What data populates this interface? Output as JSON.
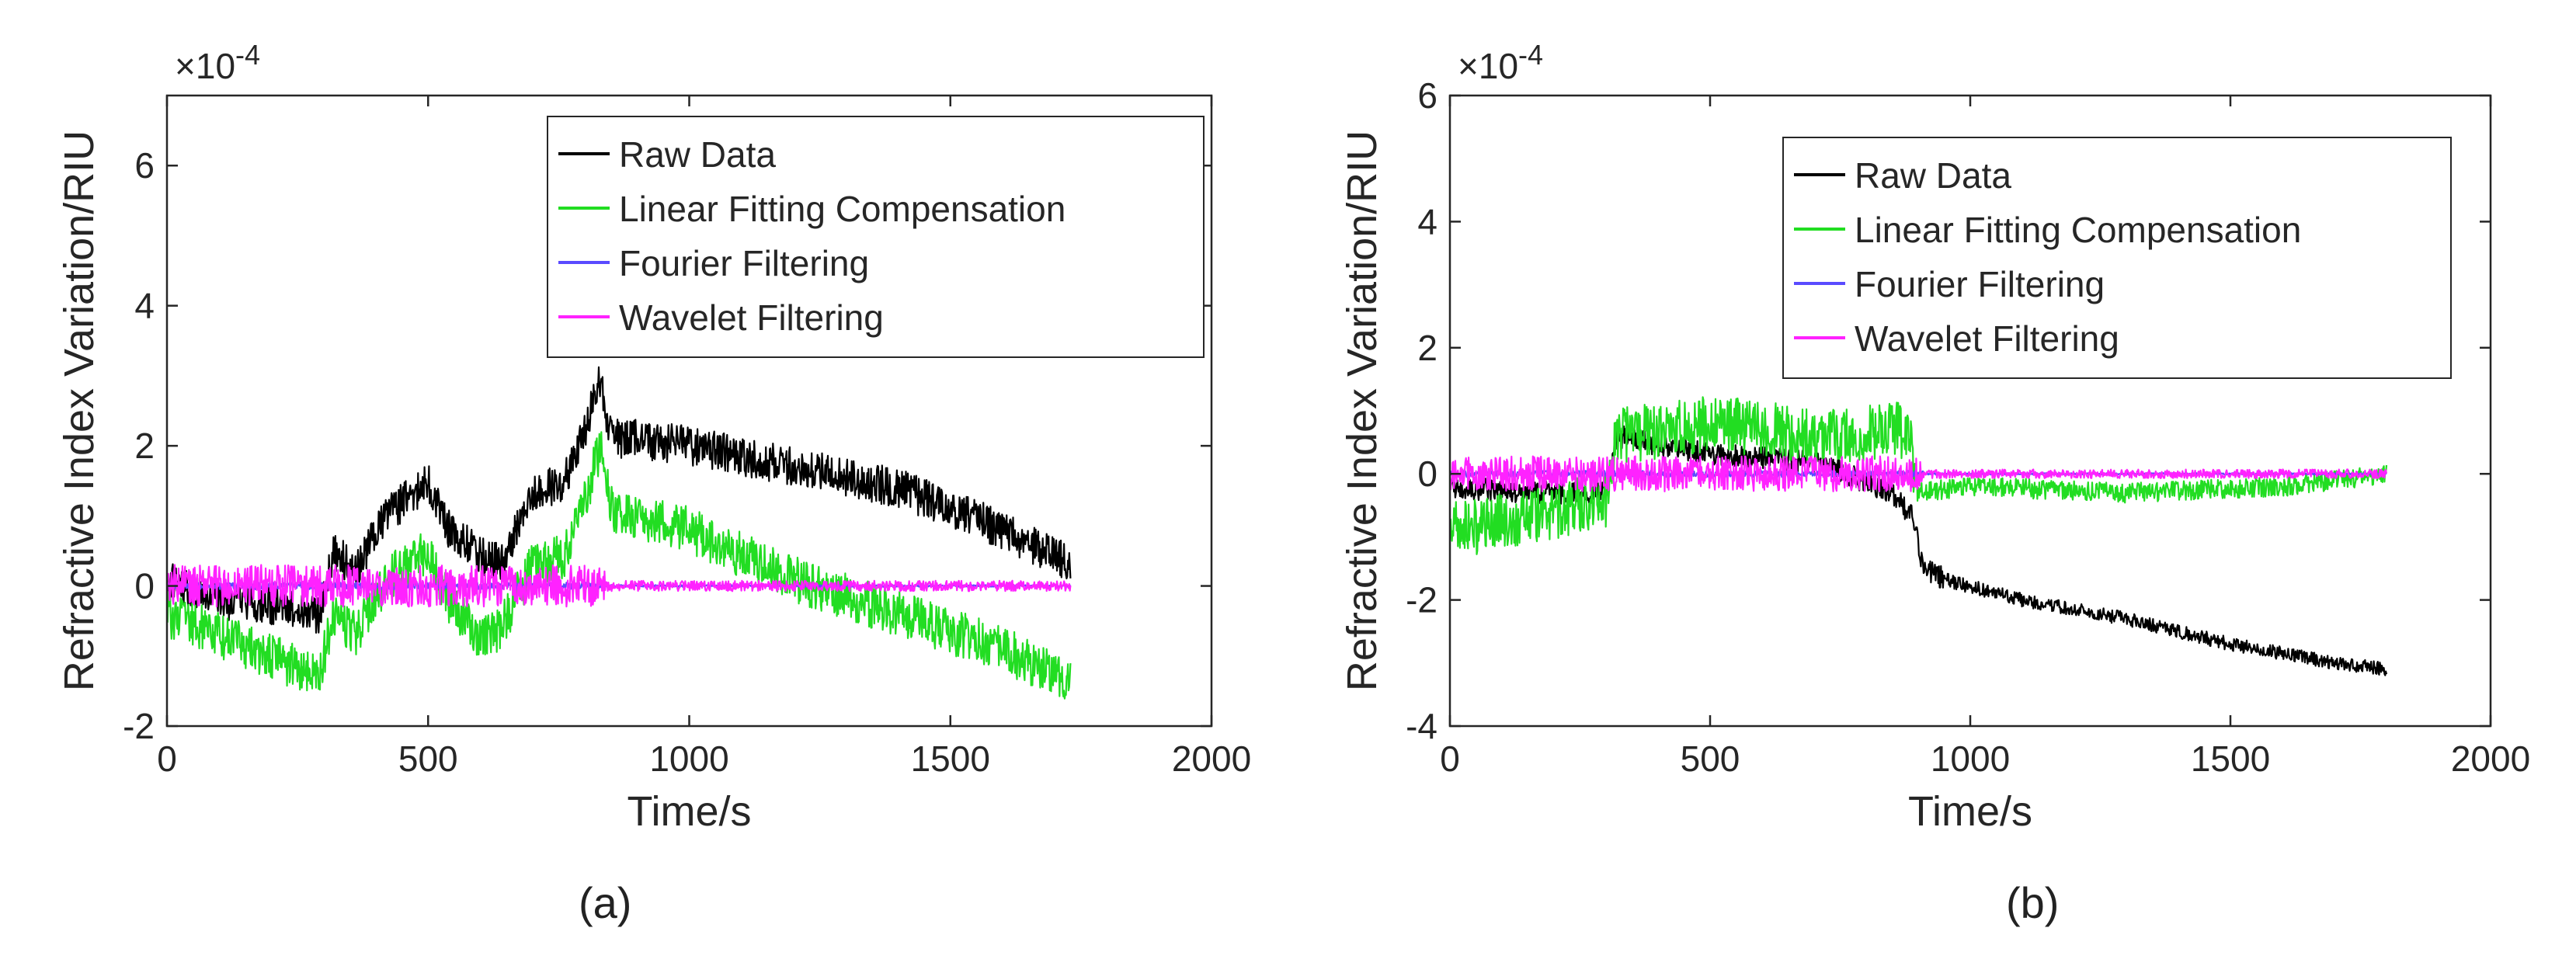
{
  "chart_data": [
    {
      "type": "line",
      "panel_label": "(a)",
      "xlabel": "Time/s",
      "ylabel": "Refractive Index Variation/RIU",
      "y_exponent": "×10",
      "y_exponent_power": "-4",
      "xlim": [
        0,
        2000
      ],
      "ylim": [
        -2,
        7
      ],
      "xticks": [
        "0",
        "500",
        "1000",
        "1500",
        "2000"
      ],
      "xtick_values": [
        0,
        500,
        1000,
        1500,
        2000
      ],
      "yticks": [
        "-2",
        "0",
        "2",
        "4",
        "6"
      ],
      "ytick_values": [
        -2,
        0,
        2,
        4,
        6
      ],
      "grid": false,
      "legend_position": "top-right",
      "series": [
        {
          "name": "Raw Data",
          "color": "#000000",
          "noise": 0.28,
          "x": [
            0,
            100,
            200,
            290,
            320,
            360,
            420,
            500,
            540,
            590,
            640,
            700,
            760,
            800,
            830,
            850,
            900,
            1000,
            1200,
            1400,
            1600,
            1730
          ],
          "y": [
            0.1,
            -0.2,
            -0.3,
            -0.4,
            0.5,
            0.2,
            1.0,
            1.5,
            0.8,
            0.5,
            0.3,
            1.3,
            1.5,
            2.2,
            3.0,
            2.1,
            2.1,
            2.0,
            1.7,
            1.4,
            0.8,
            0.3
          ]
        },
        {
          "name": "Linear Fitting Compensation",
          "color": "#22dd22",
          "noise": 0.33,
          "x": [
            0,
            100,
            200,
            290,
            320,
            360,
            420,
            500,
            540,
            590,
            640,
            700,
            760,
            800,
            830,
            850,
            900,
            1000,
            1200,
            1400,
            1600,
            1730
          ],
          "y": [
            -0.4,
            -0.7,
            -1.0,
            -1.3,
            -0.4,
            -0.7,
            0.1,
            0.5,
            -0.2,
            -0.7,
            -0.6,
            0.3,
            0.4,
            1.2,
            2.0,
            1.1,
            1.0,
            0.8,
            0.1,
            -0.4,
            -0.9,
            -1.4
          ]
        },
        {
          "name": "Fourier Filtering",
          "color": "#5a4bff",
          "noise": 0.05,
          "x": [
            0,
            400,
            830,
            850,
            1300,
            1730
          ],
          "y": [
            0.0,
            0.0,
            0.0,
            0.0,
            0.0,
            0.0
          ]
        },
        {
          "name": "Wavelet Filtering",
          "color": "#ff22ff",
          "noise": 0.3,
          "x": [
            0,
            400,
            830,
            850,
            1300,
            1730
          ],
          "y": [
            0.0,
            0.0,
            0.0,
            0.0,
            0.0,
            0.0
          ]
        }
      ]
    },
    {
      "type": "line",
      "panel_label": "(b)",
      "xlabel": "Time/s",
      "ylabel": "Refractive Index Variation/RIU",
      "y_exponent": "×10",
      "y_exponent_power": "-4",
      "xlim": [
        0,
        2000
      ],
      "ylim": [
        -4,
        6
      ],
      "xticks": [
        "0",
        "500",
        "1000",
        "1500",
        "2000"
      ],
      "xtick_values": [
        0,
        500,
        1000,
        1500,
        2000
      ],
      "yticks": [
        "-4",
        "-2",
        "0",
        "2",
        "4",
        "6"
      ],
      "ytick_values": [
        -4,
        -2,
        0,
        2,
        4,
        6
      ],
      "grid": false,
      "legend_position": "top-right",
      "series": [
        {
          "name": "Raw Data",
          "color": "#000000",
          "noise": 0.18,
          "x": [
            0,
            150,
            300,
            320,
            500,
            700,
            850,
            890,
            910,
            960,
            1100,
            1300,
            1500,
            1700,
            1800
          ],
          "y": [
            -0.2,
            -0.3,
            -0.3,
            0.6,
            0.3,
            0.2,
            -0.3,
            -0.7,
            -1.5,
            -1.7,
            -2.0,
            -2.3,
            -2.7,
            -3.0,
            -3.1
          ]
        },
        {
          "name": "Linear Fitting Compensation",
          "color": "#22dd22",
          "noise": 0.45,
          "x": [
            0,
            150,
            300,
            320,
            500,
            700,
            880,
            900,
            1000,
            1300,
            1600,
            1800
          ],
          "y": [
            -0.9,
            -0.7,
            -0.4,
            0.6,
            0.8,
            0.6,
            0.7,
            -0.3,
            -0.2,
            -0.3,
            -0.2,
            0.0
          ]
        },
        {
          "name": "Fourier Filtering",
          "color": "#5a4bff",
          "noise": 0.05,
          "x": [
            0,
            900,
            1800
          ],
          "y": [
            0.0,
            0.0,
            0.0
          ]
        },
        {
          "name": "Wavelet Filtering",
          "color": "#ff22ff",
          "noise": 0.28,
          "x": [
            0,
            300,
            320,
            900,
            920,
            1800
          ],
          "y": [
            0.0,
            0.0,
            0.0,
            0.0,
            0.0,
            0.0
          ]
        }
      ]
    }
  ]
}
